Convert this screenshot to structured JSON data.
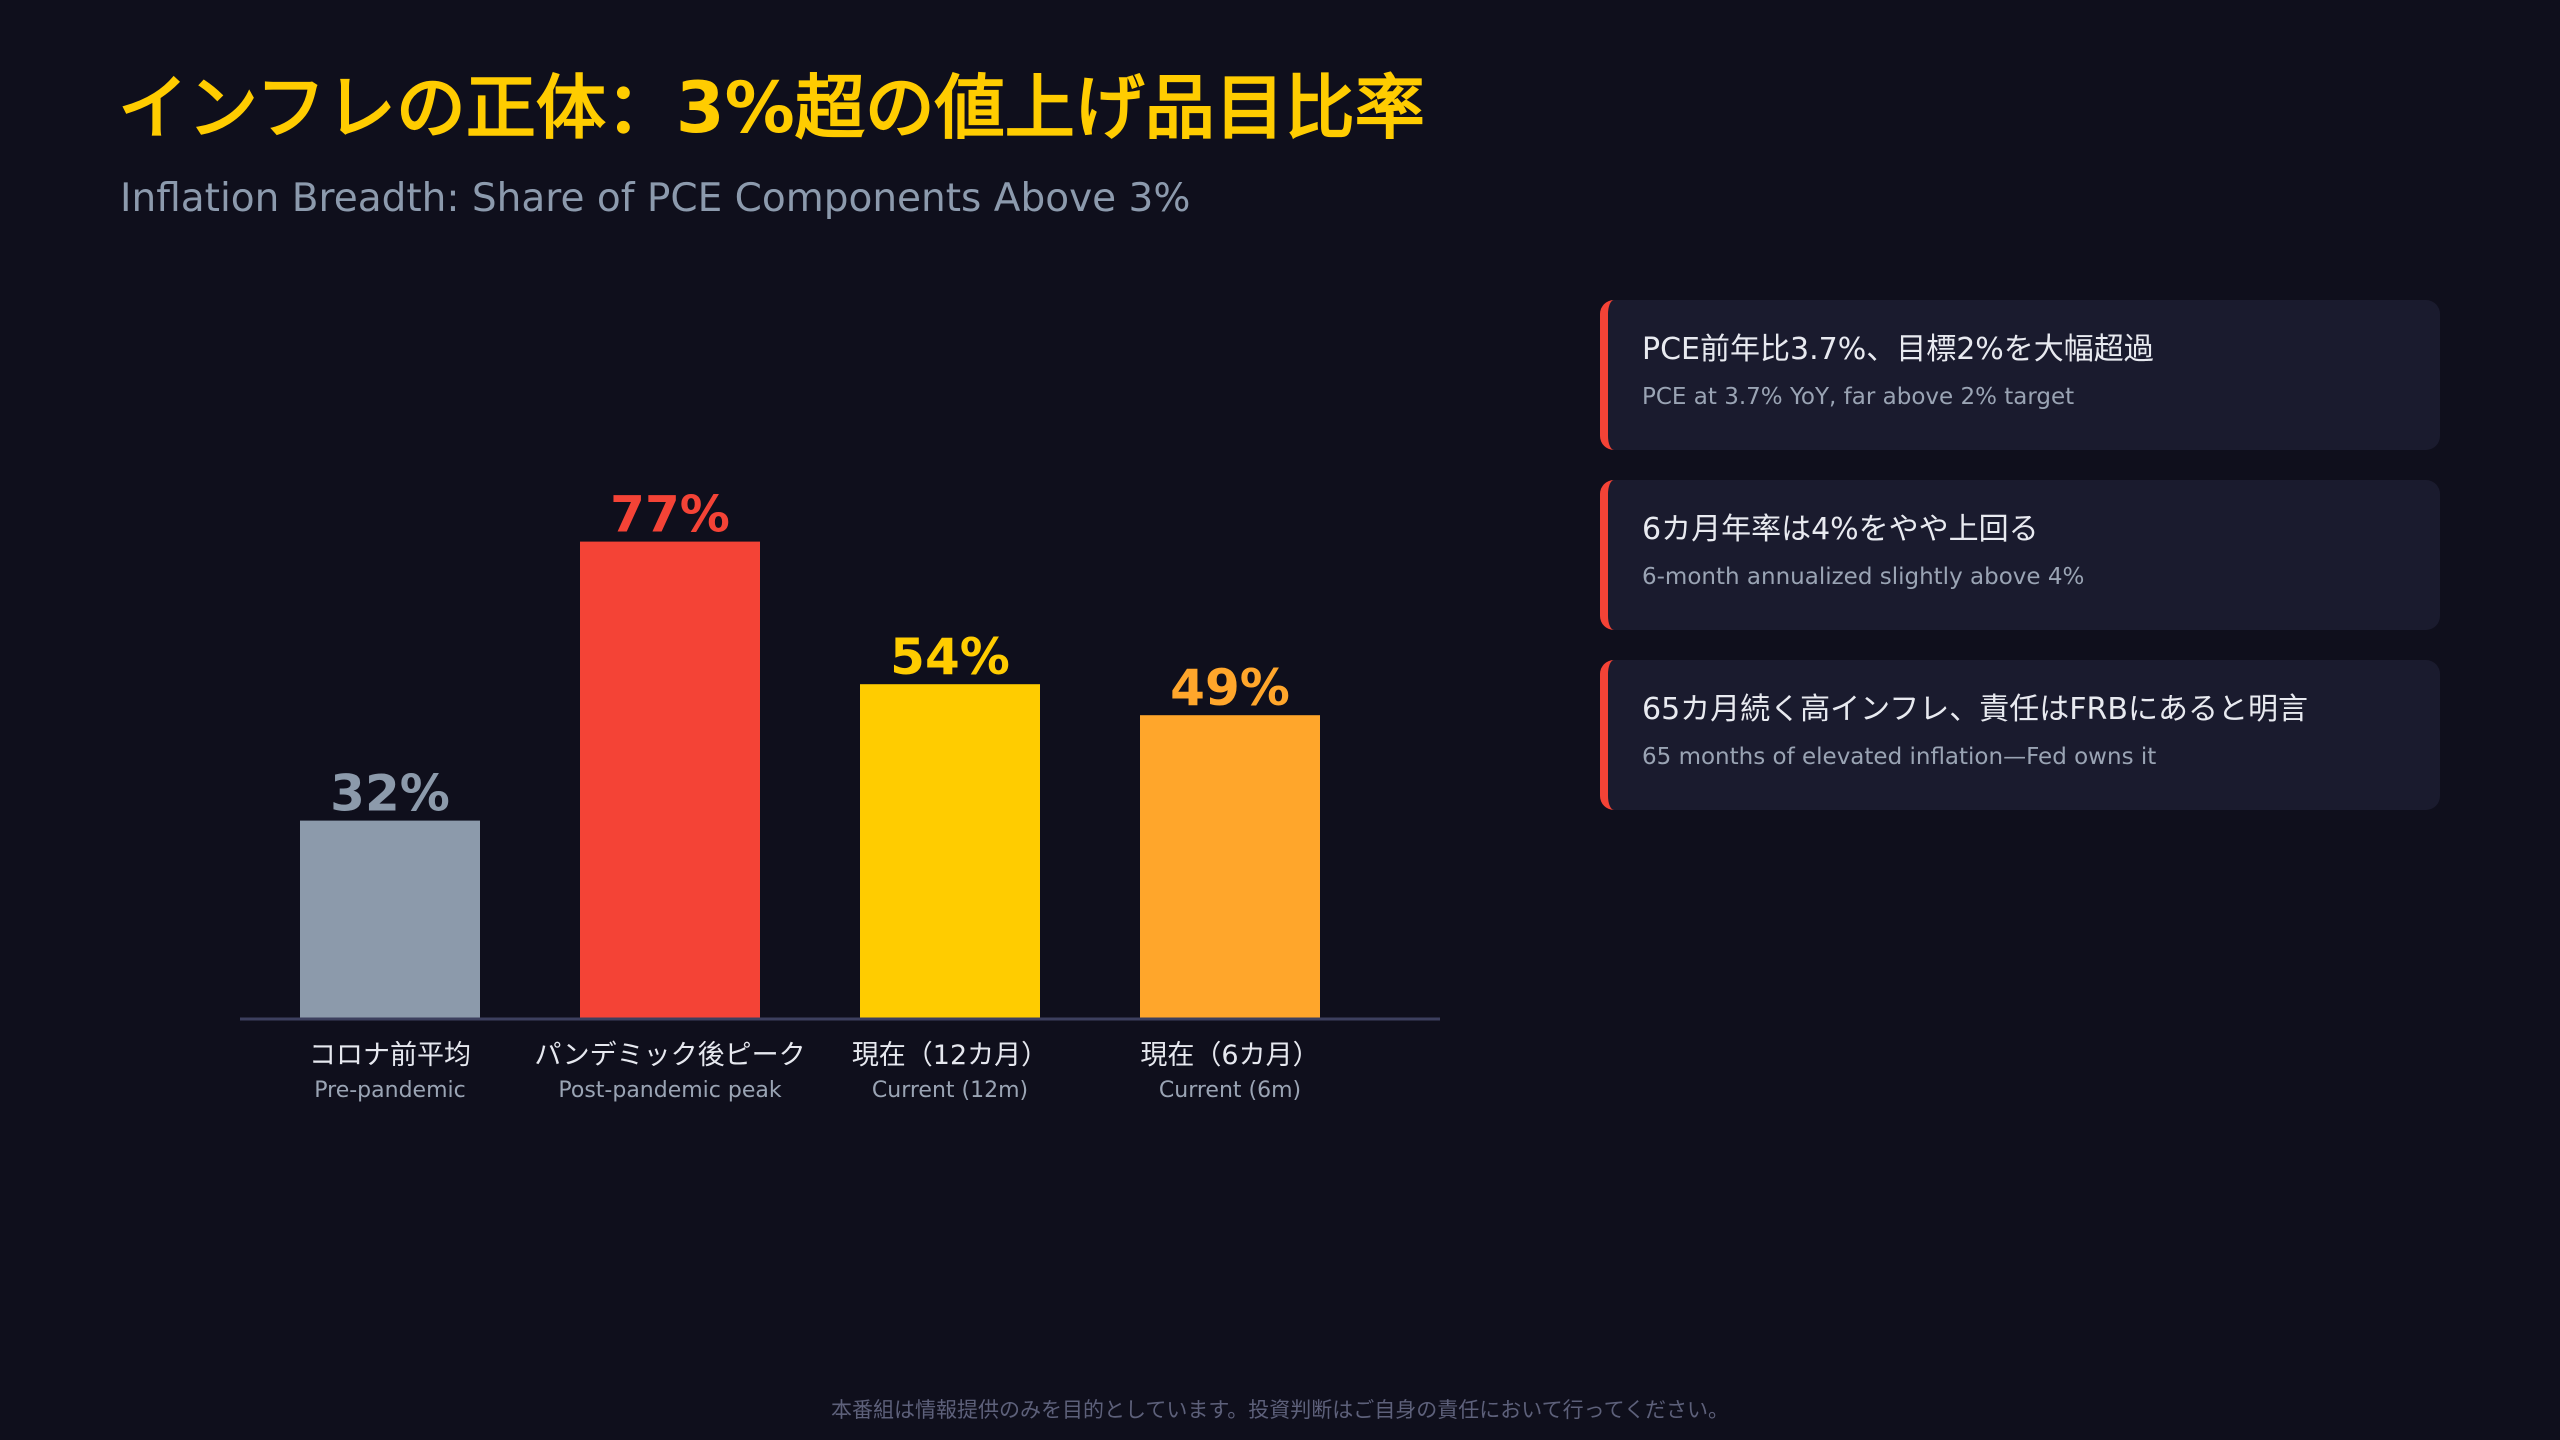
{
  "header": {
    "title": "インフレの正体：3%超の値上げ品目比率",
    "subtitle": "Inflation Breadth: Share of PCE Components Above 3%"
  },
  "chart_data": {
    "type": "bar",
    "categories": [
      "コロナ前平均",
      "パンデミック後ピーク",
      "現在（12カ月）",
      "現在（6カ月）"
    ],
    "categories_en": [
      "Pre-pandemic",
      "Post-pandemic peak",
      "Current (12m)",
      "Current (6m)"
    ],
    "values": [
      32,
      77,
      54,
      49
    ],
    "value_labels": [
      "32%",
      "77%",
      "54%",
      "49%"
    ],
    "bar_colors": [
      "#8c9aab",
      "#f44336",
      "#ffcc00",
      "#ffa62b"
    ],
    "ylim": [
      0,
      100
    ],
    "grid": false,
    "legend": false
  },
  "cards": [
    {
      "ja": "PCE前年比3.7%、目標2%を大幅超過",
      "en": "PCE at 3.7% YoY, far above 2% target"
    },
    {
      "ja": "6カ月年率は4%をやや上回る",
      "en": "6-month annualized slightly above 4%"
    },
    {
      "ja": "65カ月続く高インフレ、責任はFRBにあると明言",
      "en": "65 months of elevated inflation—Fed owns it"
    }
  ],
  "colors": {
    "background": "#0f0f1c",
    "title": "#ffcc00",
    "card_accent": "#f44336",
    "card_bg": "#1a1b2e"
  },
  "footer": {
    "disclaimer": "本番組は情報提供のみを目的としています。投資判断はご自身の責任において行ってください。"
  }
}
